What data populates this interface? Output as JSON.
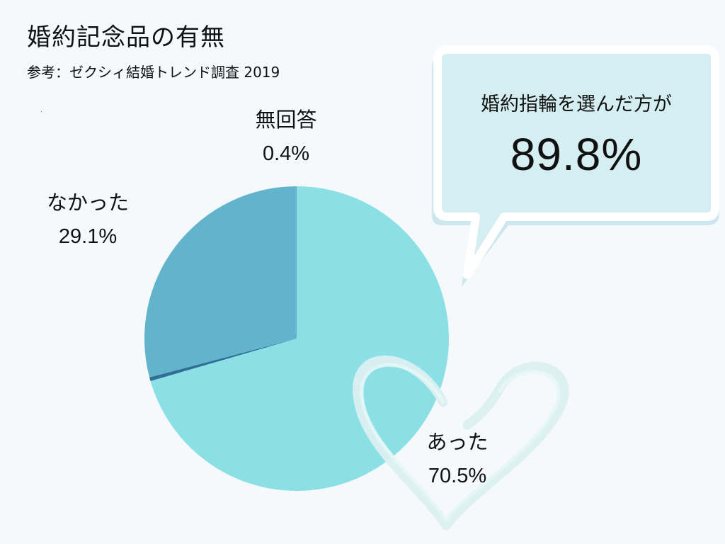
{
  "title": "婚約記念品の有無",
  "source": "参考：ゼクシィ結婚トレンド調査 2019",
  "callout": {
    "heading": "婚約指輪を選んだ方が",
    "value": "89.8%"
  },
  "colors": {
    "background": "#f5f9fb",
    "slice_yes": "#8ae0e5",
    "slice_no": "#62b4cd",
    "slice_none": "#2f6e97",
    "callout_fill": "#d4eef2",
    "callout_border": "#ffffff",
    "callout_shadow": "#c8e6ec",
    "heart": "#dbeff1"
  },
  "icons": {
    "decor": "heart-outline-icon"
  },
  "chart_data": {
    "type": "pie",
    "title": "婚約記念品の有無",
    "slices": [
      {
        "label": "あった",
        "value": 70.5,
        "value_label": "70.5%"
      },
      {
        "label": "無回答",
        "value": 0.4,
        "value_label": "0.4%"
      },
      {
        "label": "なかった",
        "value": 29.1,
        "value_label": "29.1%"
      }
    ]
  }
}
